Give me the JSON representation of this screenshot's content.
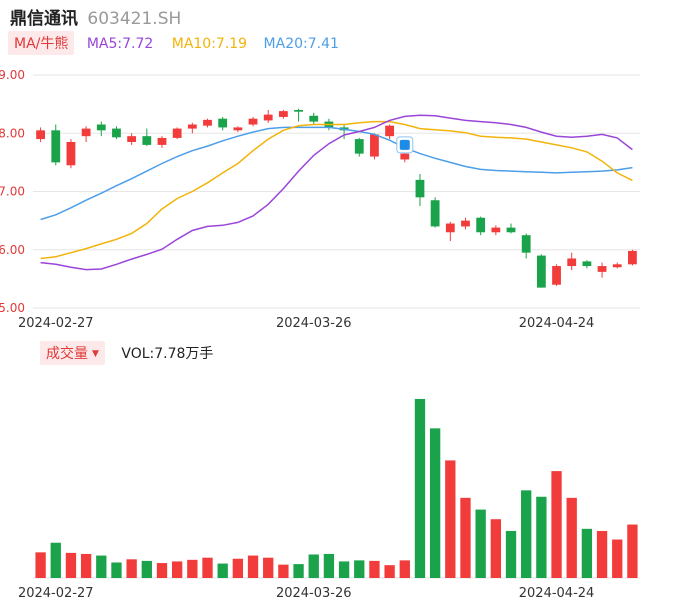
{
  "header": {
    "name": "鼎信通讯",
    "code": "603421.SH"
  },
  "indicators": {
    "ma_badge": "MA/牛熊",
    "ma5": "MA5:7.72",
    "ma10": "MA10:7.19",
    "ma20": "MA20:7.41"
  },
  "volume_bar": {
    "badge": "成交量",
    "vol_text": "VOL:7.78万手"
  },
  "colors": {
    "up": "#f23c3c",
    "down": "#1aa34a",
    "ma5": "#9a45d9",
    "ma10": "#f2b40a",
    "ma20": "#4d9ee9",
    "grid": "#e6e6e6",
    "axis_text": "#e03a3a"
  },
  "chart_data": {
    "type": "candlestick",
    "y_ticks": [
      "9.00",
      "8.00",
      "7.00",
      "6.00",
      "5.00"
    ],
    "y_tick_values": [
      9,
      8,
      7,
      6,
      5
    ],
    "ylim": [
      5.0,
      9.0
    ],
    "x_ticks": [
      {
        "label": "2024-02-27",
        "index": 1
      },
      {
        "label": "2024-03-26",
        "index": 18
      },
      {
        "label": "2024-04-24",
        "index": 34
      }
    ],
    "candles": [
      {
        "o": 7.9,
        "c": 8.05,
        "h": 8.1,
        "l": 7.85
      },
      {
        "o": 8.05,
        "c": 7.5,
        "h": 8.15,
        "l": 7.45
      },
      {
        "o": 7.45,
        "c": 7.85,
        "h": 7.9,
        "l": 7.4
      },
      {
        "o": 7.95,
        "c": 8.08,
        "h": 8.12,
        "l": 7.85
      },
      {
        "o": 8.15,
        "c": 8.05,
        "h": 8.2,
        "l": 7.95
      },
      {
        "o": 8.08,
        "c": 7.93,
        "h": 8.12,
        "l": 7.9
      },
      {
        "o": 7.85,
        "c": 7.95,
        "h": 8.0,
        "l": 7.8
      },
      {
        "o": 7.95,
        "c": 7.8,
        "h": 8.08,
        "l": 7.78
      },
      {
        "o": 7.8,
        "c": 7.92,
        "h": 7.95,
        "l": 7.75
      },
      {
        "o": 7.92,
        "c": 8.08,
        "h": 8.1,
        "l": 7.9
      },
      {
        "o": 8.08,
        "c": 8.15,
        "h": 8.18,
        "l": 8.0
      },
      {
        "o": 8.13,
        "c": 8.23,
        "h": 8.25,
        "l": 8.1
      },
      {
        "o": 8.25,
        "c": 8.1,
        "h": 8.28,
        "l": 8.05
      },
      {
        "o": 8.05,
        "c": 8.1,
        "h": 8.12,
        "l": 8.02
      },
      {
        "o": 8.15,
        "c": 8.25,
        "h": 8.28,
        "l": 8.12
      },
      {
        "o": 8.22,
        "c": 8.32,
        "h": 8.4,
        "l": 8.18
      },
      {
        "o": 8.28,
        "c": 8.38,
        "h": 8.4,
        "l": 8.25
      },
      {
        "o": 8.4,
        "c": 8.37,
        "h": 8.42,
        "l": 8.2
      },
      {
        "o": 8.3,
        "c": 8.2,
        "h": 8.35,
        "l": 8.15
      },
      {
        "o": 8.2,
        "c": 8.1,
        "h": 8.25,
        "l": 8.05
      },
      {
        "o": 8.1,
        "c": 8.05,
        "h": 8.15,
        "l": 7.9
      },
      {
        "o": 7.9,
        "c": 7.65,
        "h": 7.92,
        "l": 7.6
      },
      {
        "o": 7.6,
        "c": 7.98,
        "h": 8.0,
        "l": 7.55
      },
      {
        "o": 7.95,
        "c": 8.13,
        "h": 8.15,
        "l": 7.9
      },
      {
        "o": 7.55,
        "c": 7.65,
        "h": 7.7,
        "l": 7.5
      },
      {
        "o": 7.2,
        "c": 6.9,
        "h": 7.3,
        "l": 6.75
      },
      {
        "o": 6.85,
        "c": 6.4,
        "h": 6.9,
        "l": 6.38
      },
      {
        "o": 6.3,
        "c": 6.45,
        "h": 6.48,
        "l": 6.15
      },
      {
        "o": 6.4,
        "c": 6.5,
        "h": 6.55,
        "l": 6.35
      },
      {
        "o": 6.55,
        "c": 6.3,
        "h": 6.57,
        "l": 6.25
      },
      {
        "o": 6.3,
        "c": 6.38,
        "h": 6.42,
        "l": 6.25
      },
      {
        "o": 6.38,
        "c": 6.3,
        "h": 6.45,
        "l": 6.28
      },
      {
        "o": 6.25,
        "c": 5.95,
        "h": 6.28,
        "l": 5.85
      },
      {
        "o": 5.9,
        "c": 5.35,
        "h": 5.92,
        "l": 5.35
      },
      {
        "o": 5.4,
        "c": 5.72,
        "h": 5.75,
        "l": 5.38
      },
      {
        "o": 5.72,
        "c": 5.85,
        "h": 5.95,
        "l": 5.65
      },
      {
        "o": 5.8,
        "c": 5.72,
        "h": 5.82,
        "l": 5.68
      },
      {
        "o": 5.62,
        "c": 5.72,
        "h": 5.78,
        "l": 5.52
      },
      {
        "o": 5.7,
        "c": 5.75,
        "h": 5.78,
        "l": 5.68
      },
      {
        "o": 5.75,
        "c": 5.98,
        "h": 6.0,
        "l": 5.73
      }
    ],
    "volume": [
      48,
      66,
      47,
      45,
      42,
      29,
      35,
      32,
      28,
      31,
      34,
      38,
      27,
      36,
      42,
      38,
      25,
      26,
      44,
      45,
      31,
      33,
      32,
      24,
      33,
      335,
      280,
      220,
      150,
      128,
      110,
      88,
      164,
      152,
      200,
      150,
      92,
      88,
      72,
      100
    ],
    "ma5": [
      5.78,
      5.75,
      5.7,
      5.66,
      5.67,
      5.75,
      5.84,
      5.92,
      6.01,
      6.18,
      6.33,
      6.4,
      6.42,
      6.47,
      6.58,
      6.78,
      7.05,
      7.35,
      7.62,
      7.82,
      7.97,
      8.03,
      8.1,
      8.22,
      8.29,
      8.31,
      8.3,
      8.26,
      8.22,
      8.2,
      8.18,
      8.15,
      8.1,
      8.02,
      7.95,
      7.93,
      7.95,
      7.98,
      7.92,
      7.72
    ],
    "ma10": [
      5.85,
      5.88,
      5.95,
      6.02,
      6.1,
      6.18,
      6.28,
      6.45,
      6.7,
      6.88,
      7.0,
      7.15,
      7.32,
      7.48,
      7.7,
      7.9,
      8.05,
      8.13,
      8.15,
      8.15,
      8.15,
      8.18,
      8.2,
      8.2,
      8.15,
      8.08,
      8.06,
      8.04,
      8.01,
      7.95,
      7.93,
      7.92,
      7.9,
      7.85,
      7.8,
      7.75,
      7.68,
      7.52,
      7.32,
      7.19
    ],
    "ma20": [
      6.52,
      6.6,
      6.72,
      6.85,
      6.97,
      7.1,
      7.22,
      7.35,
      7.48,
      7.6,
      7.7,
      7.78,
      7.87,
      7.95,
      8.02,
      8.08,
      8.1,
      8.1,
      8.1,
      8.1,
      8.07,
      8.03,
      7.98,
      7.88,
      7.75,
      7.65,
      7.57,
      7.5,
      7.43,
      7.38,
      7.36,
      7.35,
      7.34,
      7.33,
      7.32,
      7.33,
      7.34,
      7.35,
      7.37,
      7.41
    ]
  }
}
